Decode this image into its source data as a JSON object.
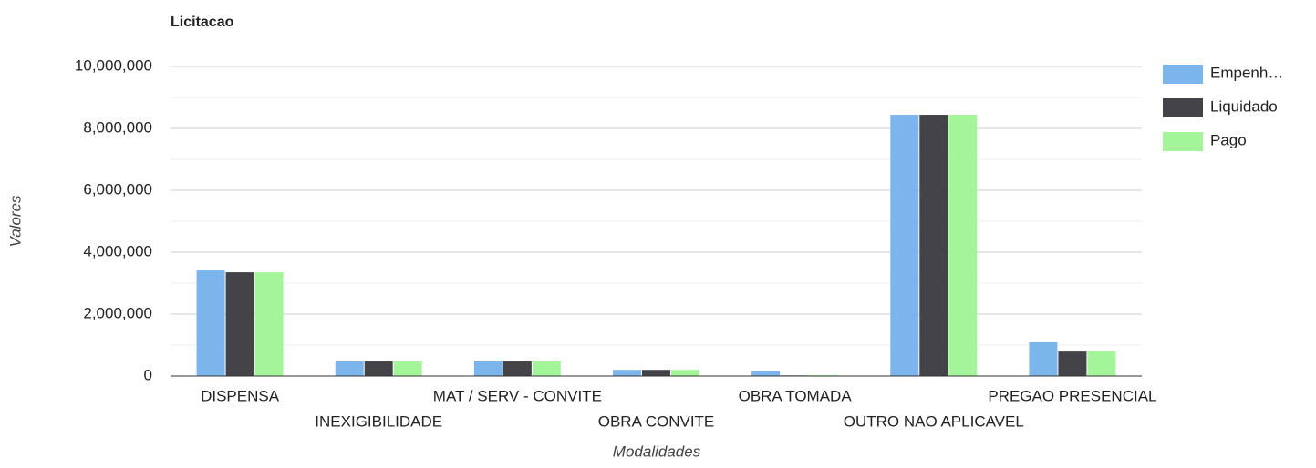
{
  "chart_data": {
    "type": "bar",
    "title": "Licitacao",
    "x_label": "Modalidades",
    "y_label": "Valores",
    "categories": [
      "DISPENSA",
      "INEXIGIBILIDADE",
      "MAT / SERV - CONVITE",
      "OBRA CONVITE",
      "OBRA TOMADA",
      "OUTRO NAO APLICAVEL",
      "PREGAO PRESENCIAL"
    ],
    "series": [
      {
        "name": "Empenh…",
        "color": "#7cb5ec",
        "values": [
          3410000,
          470000,
          470000,
          200000,
          150000,
          8440000,
          1090000
        ]
      },
      {
        "name": "Liquidado",
        "color": "#434348",
        "values": [
          3350000,
          470000,
          470000,
          200000,
          20000,
          8440000,
          790000
        ]
      },
      {
        "name": "Pago",
        "color": "#a4f59a",
        "values": [
          3350000,
          470000,
          470000,
          200000,
          30000,
          8440000,
          800000
        ]
      }
    ],
    "ylim": [
      0,
      10000000
    ],
    "yticks": [
      0,
      {
        "value": 2000000,
        "label": "2,000,000"
      },
      {
        "value": 4000000,
        "label": "4,000,000"
      },
      {
        "value": 6000000,
        "label": "6,000,000"
      },
      {
        "value": 8000000,
        "label": "8,000,000"
      },
      {
        "value": 10000000,
        "label": "10,000,000"
      }
    ],
    "grid": true,
    "legend": "right"
  }
}
